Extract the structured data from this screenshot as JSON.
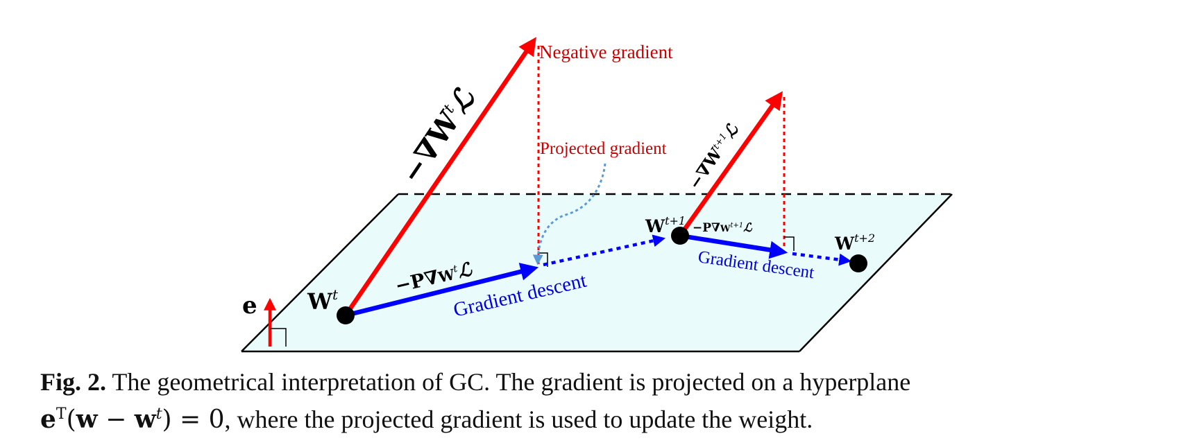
{
  "diagram": {
    "labels": {
      "negative_gradient": "Negative gradient",
      "projected_gradient": "Projected gradient",
      "gradient_descent_1": "Gradient descent",
      "gradient_descent_2": "Gradient descent",
      "neg_grad_1": "−∇",
      "neg_grad_1_w": "W",
      "neg_grad_1_sup": "t",
      "neg_grad_1_L": "ℒ",
      "neg_grad_2": "−∇",
      "neg_grad_2_w": "W",
      "neg_grad_2_sup": "t+1",
      "neg_grad_2_L": "ℒ",
      "proj_1_prefix": "−P∇",
      "proj_1_w": "W",
      "proj_1_sup": "t",
      "proj_1_L": "ℒ",
      "proj_2_prefix": "−P∇",
      "proj_2_w": "W",
      "proj_2_sup": "t+1",
      "proj_2_L": "ℒ",
      "point_1": "W",
      "point_1_sup": "t",
      "point_2": "W",
      "point_2_sup": "t+1",
      "point_3": "W",
      "point_3_sup": "t+2",
      "normal_vector": "e"
    },
    "colors": {
      "plane_fill": "#e9fbfb",
      "plane_edge": "#000000",
      "gradient": "#ff0000",
      "projected": "#0000ff",
      "label_red": "#cc0000",
      "label_blue": "#0000dd",
      "curved_pointer": "#5b9bd5",
      "point": "#000000"
    }
  },
  "caption": {
    "fig_label": "Fig. 2.",
    "text_line1": " The geometrical interpretation of GC. The gradient is projected on a hyperplane",
    "eq_e": "e",
    "eq_sup": "T",
    "eq_open": "(",
    "eq_w": "w",
    "eq_minus": " − ",
    "eq_wt": "w",
    "eq_wt_sup": "t",
    "eq_close": ") = 0",
    "text_line2": ", where the projected gradient is used to update the weight."
  }
}
